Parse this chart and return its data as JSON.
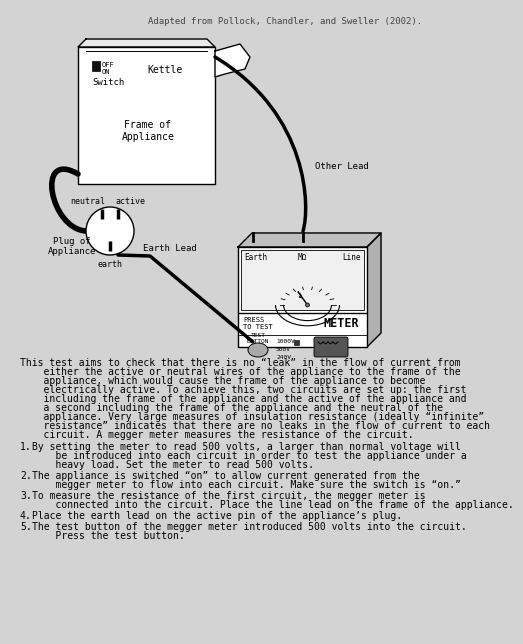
{
  "bg_color": "#d3d3d3",
  "title_text": "Adapted from Pollock, Chandler, and Sweller (2002).",
  "body_text_lines": [
    "This test aims to check that there is no “leak” in the flow of current from",
    "    either the active or neutral wires of the appliance to the frame of the",
    "    appliance, which would cause the frame of the appliance to become",
    "    electrically active. To achieve this, two circuits are set up: the first",
    "    including the frame of the appliance and the active of the appliance and",
    "    a second including the frame of the appliance and the neutral of the",
    "    appliance. Very large measures of insulation resistance (ideally “infinite”",
    "    resistance” indicates that there are no leaks in the flow of current to each",
    "    circuit. A megger meter measures the resistance of the circuit."
  ],
  "list_items": [
    [
      "By setting the meter to read 500 volts, a larger than normal voltage will",
      "    be introduced into each circuit in order to test the appliance under a",
      "    heavy load. Set the meter to read 500 volts."
    ],
    [
      "The appliance is switched “on” to allow current generated from the",
      "    megger meter to flow into each circuit. Make sure the switch is “on.”"
    ],
    [
      "To measure the resistance of the first circuit, the megger meter is",
      "    connected into the circuit. Place the line lead on the frame of the appliance."
    ],
    [
      "Place the earth lead on the active pin of the appliance’s plug."
    ],
    [
      "The test button of the megger meter introduced 500 volts into the circuit.",
      "    Press the test button."
    ]
  ],
  "lc": "#000000",
  "bc": "#ffffff",
  "bg": "#d3d3d3",
  "font_size": 7.0
}
